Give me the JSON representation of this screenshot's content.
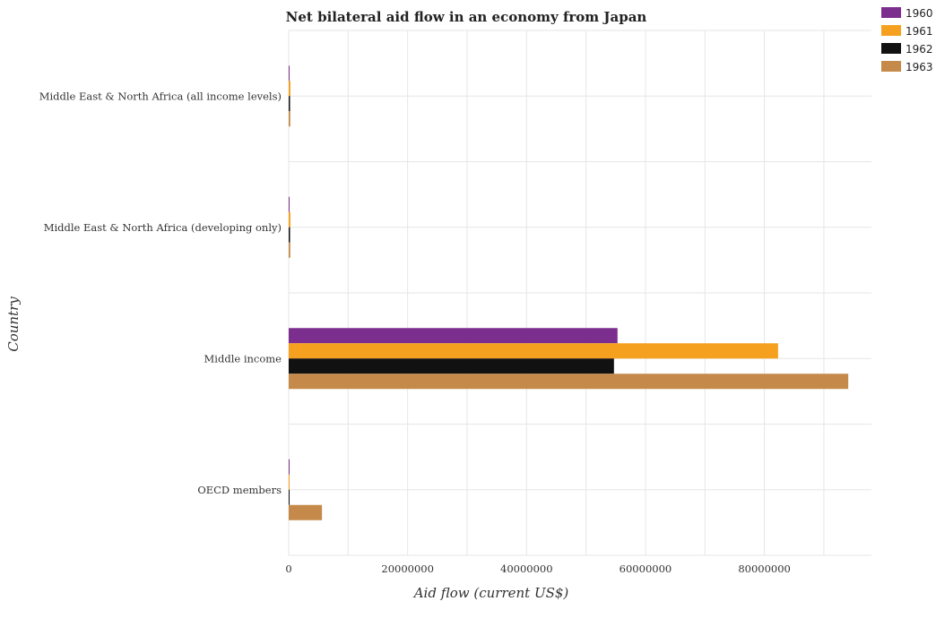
{
  "chart_data": {
    "type": "bar",
    "orientation": "horizontal",
    "title": "Net bilateral aid flow in an economy from Japan",
    "xlabel": "Aid flow (current US$)",
    "ylabel": "Country",
    "categories": [
      "Middle East & North Africa (all income levels)",
      "Middle East & North Africa (developing only)",
      "Middle income",
      "OECD members"
    ],
    "series": [
      {
        "name": "1960",
        "color": "#7b2e8e",
        "values": [
          90000,
          90000,
          55300000,
          10000
        ]
      },
      {
        "name": "1961",
        "color": "#f5a01e",
        "values": [
          290000,
          290000,
          82300000,
          30000
        ]
      },
      {
        "name": "1962",
        "color": "#111111",
        "values": [
          230000,
          230000,
          54700000,
          100000
        ]
      },
      {
        "name": "1963",
        "color": "#c58a4a",
        "values": [
          270000,
          270000,
          94100000,
          5600000
        ]
      }
    ],
    "xlim": [
      0,
      98000000
    ],
    "xticks": [
      0,
      20000000,
      40000000,
      60000000,
      80000000
    ],
    "xtick_labels": [
      "0",
      "20000000",
      "40000000",
      "60000000",
      "80000000"
    ],
    "grid": true,
    "legend_position": "top-right"
  }
}
